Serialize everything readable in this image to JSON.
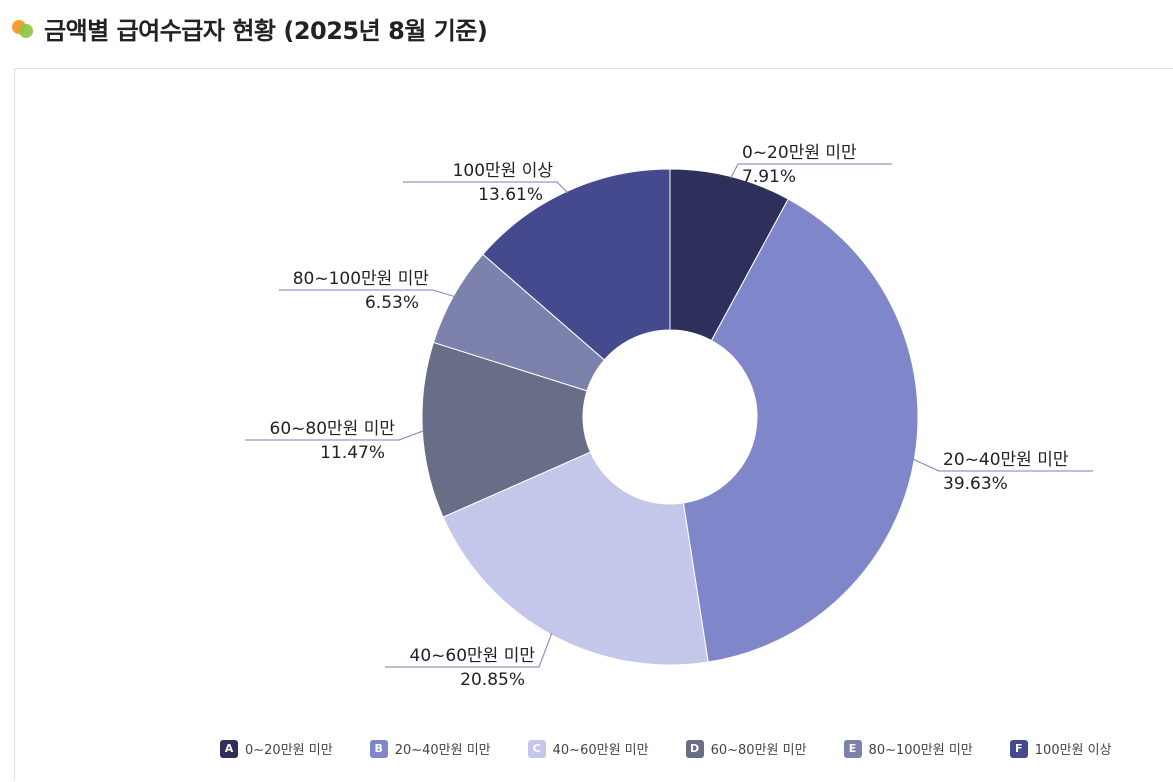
{
  "header": {
    "title": "금액별 급여수급자 현황 (2025년 8월 기준)",
    "icon": "dual-circle-icon"
  },
  "chart_data": {
    "type": "pie",
    "donut": true,
    "title": "금액별 급여수급자 현황 (2025년 8월 기준)",
    "legend_position": "bottom",
    "slices": [
      {
        "letter": "A",
        "name": "0~20만원 미만",
        "value": 7.91,
        "label": "7.91%",
        "color": "#2e2f5b"
      },
      {
        "letter": "B",
        "name": "20~40만원 미만",
        "value": 39.63,
        "label": "39.63%",
        "color": "#7f86c9"
      },
      {
        "letter": "C",
        "name": "40~60만원 미만",
        "value": 20.85,
        "label": "20.85%",
        "color": "#c4c7ea"
      },
      {
        "letter": "D",
        "name": "60~80만원 미만",
        "value": 11.47,
        "label": "11.47%",
        "color": "#6a6d87"
      },
      {
        "letter": "E",
        "name": "80~100만원 미만",
        "value": 6.53,
        "label": "6.53%",
        "color": "#7d82ad"
      },
      {
        "letter": "F",
        "name": "100만원 이상",
        "value": 13.61,
        "label": "13.61%",
        "color": "#454a8e"
      }
    ]
  }
}
